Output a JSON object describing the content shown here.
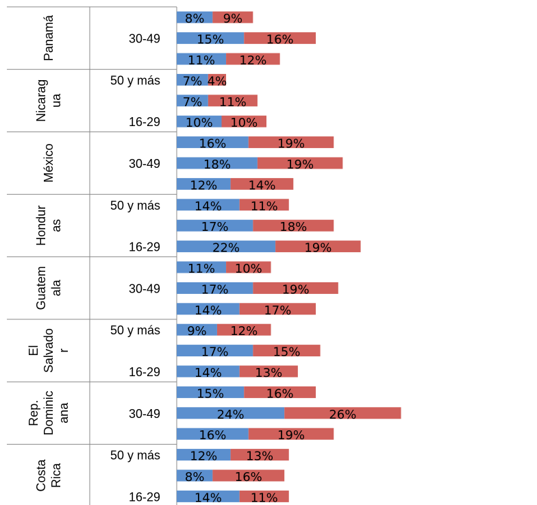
{
  "chart_data": {
    "type": "bar",
    "orientation": "horizontal",
    "stacked": true,
    "grid": false,
    "legend": "none",
    "colors": {
      "series1": "#5b8fce",
      "series2": "#d0605b"
    },
    "countries": [
      {
        "name": "Panamá",
        "label_lines": [
          "Panamá"
        ],
        "age_labels": [
          "",
          "30-49",
          ""
        ]
      },
      {
        "name": "Nicaragua",
        "label_lines": [
          "Nicarag",
          "ua"
        ],
        "age_labels": [
          "50 y más",
          "",
          "16-29"
        ]
      },
      {
        "name": "México",
        "label_lines": [
          "México"
        ],
        "age_labels": [
          "",
          "30-49",
          ""
        ]
      },
      {
        "name": "Honduras",
        "label_lines": [
          "Hondur",
          "as"
        ],
        "age_labels": [
          "50 y más",
          "",
          "16-29"
        ]
      },
      {
        "name": "Guatemala",
        "label_lines": [
          "Guatem",
          "ala"
        ],
        "age_labels": [
          "",
          "30-49",
          ""
        ]
      },
      {
        "name": "El Salvador",
        "label_lines": [
          "El",
          "Salvado",
          "r"
        ],
        "age_labels": [
          "50 y más",
          "",
          "16-29"
        ]
      },
      {
        "name": "Rep. Dominicana",
        "label_lines": [
          "Rep.",
          "Dominic",
          "ana"
        ],
        "age_labels": [
          "",
          "30-49",
          ""
        ]
      },
      {
        "name": "Costa Rica",
        "label_lines": [
          "Costa",
          "Rica"
        ],
        "age_labels": [
          "50 y más",
          "",
          "16-29"
        ]
      }
    ],
    "series": [
      {
        "values": [
          8,
          15,
          11,
          7,
          7,
          10,
          16,
          18,
          12,
          14,
          17,
          22,
          11,
          17,
          14,
          9,
          17,
          14,
          15,
          24,
          16,
          12,
          8,
          14
        ]
      },
      {
        "values": [
          9,
          16,
          12,
          4,
          11,
          10,
          19,
          19,
          14,
          11,
          18,
          19,
          10,
          19,
          17,
          12,
          15,
          13,
          16,
          26,
          19,
          13,
          16,
          11
        ]
      }
    ],
    "value_suffix": "%"
  }
}
